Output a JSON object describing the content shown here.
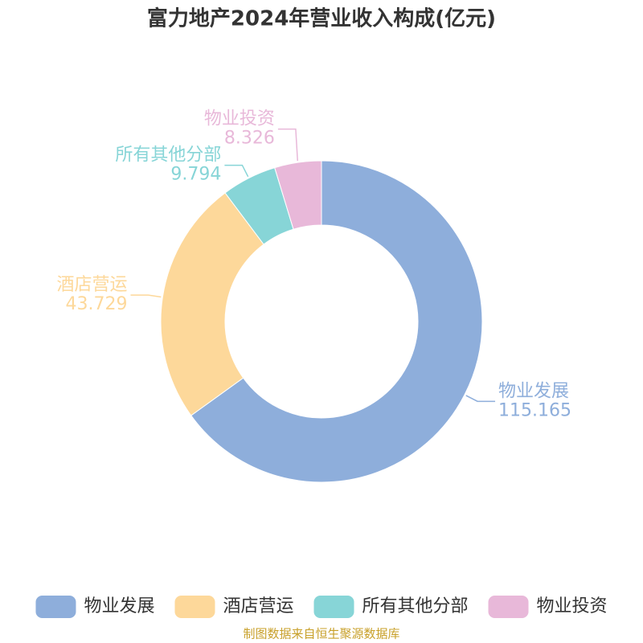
{
  "chart_data": {
    "type": "donut",
    "title": "富力地产2024年营业收入构成(亿元)",
    "categories": [
      "物业发展",
      "酒店营运",
      "所有其他分部",
      "物业投资"
    ],
    "values": [
      115.165,
      43.729,
      9.794,
      8.326
    ],
    "colors": [
      "#8eaedb",
      "#fdd89a",
      "#87d5d7",
      "#e8b8d9"
    ],
    "legend": "bottom",
    "source": "制图数据来自恒生聚源数据库"
  }
}
